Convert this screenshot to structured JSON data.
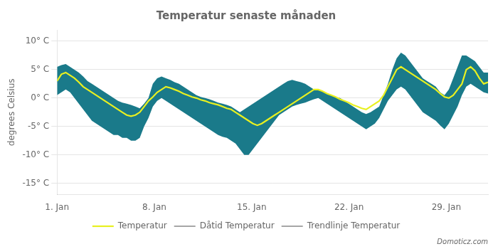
{
  "chart_data": {
    "type": "line",
    "title": "Temperatur senaste månaden",
    "y_label": "degrees Celsius",
    "annotation": "Domoticz.com",
    "x": [
      0,
      0.3131,
      0.6263,
      0.9394,
      1.2525,
      1.5657,
      1.8788,
      2.1919,
      2.5051,
      2.8182,
      3.1313,
      3.4444,
      3.7576,
      4.0707,
      4.3838,
      4.697,
      5.0101,
      5.3232,
      5.6364,
      5.9495,
      6.2626,
      6.5758,
      6.8889,
      7.202,
      7.5152,
      7.8283,
      8.1414,
      8.4545,
      8.7677,
      9.0808,
      9.3939,
      9.7071,
      10.0202,
      10.3333,
      10.6465,
      10.9596,
      11.2727,
      11.5859,
      11.899,
      12.2121,
      12.5253,
      12.8384,
      13.1515,
      13.4646,
      13.7778,
      14.0909,
      14.404,
      14.7172,
      15.0303,
      15.3434,
      15.6566,
      15.9697,
      16.2828,
      16.596,
      16.9091,
      17.2222,
      17.5354,
      17.8485,
      18.1616,
      18.4747,
      18.7879,
      19.101,
      19.4141,
      19.7273,
      20.0404,
      20.3535,
      20.6667,
      20.9798,
      21.2929,
      21.6061,
      21.9192,
      22.2323,
      22.5455,
      22.8586,
      23.1717,
      23.4848,
      23.798,
      24.1111,
      24.4242,
      24.7374,
      25.0505,
      25.3636,
      25.6768,
      25.9899,
      26.303,
      26.6162,
      26.9293,
      27.2424,
      27.5556,
      27.8687,
      28.1818,
      28.4949,
      28.8081,
      29.1212,
      29.4343,
      29.7475,
      30.0606,
      30.3737,
      30.6869,
      31
    ],
    "series": [
      {
        "name": "Temperatur",
        "color": "#e8f020",
        "line_style": "solid",
        "values": [
          3.0,
          4.2,
          4.5,
          4.0,
          3.5,
          2.8,
          2.0,
          1.5,
          1.0,
          0.5,
          0.0,
          -0.5,
          -1.0,
          -1.5,
          -2.0,
          -2.5,
          -3.0,
          -3.2,
          -3.0,
          -2.5,
          -1.5,
          -0.5,
          0.2,
          1.0,
          1.5,
          2.0,
          1.8,
          1.5,
          1.2,
          0.8,
          0.5,
          0.2,
          0.0,
          -0.3,
          -0.5,
          -0.8,
          -1.0,
          -1.2,
          -1.5,
          -1.8,
          -2.0,
          -2.5,
          -3.0,
          -3.5,
          -4.0,
          -4.5,
          -4.8,
          -4.5,
          -4.0,
          -3.5,
          -3.0,
          -2.5,
          -2.0,
          -1.5,
          -1.0,
          -0.5,
          0.0,
          0.5,
          1.0,
          1.5,
          1.5,
          1.2,
          0.8,
          0.5,
          0.2,
          -0.2,
          -0.5,
          -0.8,
          -1.2,
          -1.5,
          -1.8,
          -2.0,
          -1.5,
          -1.0,
          -0.5,
          0.5,
          2.0,
          3.5,
          5.0,
          5.5,
          5.0,
          4.5,
          4.0,
          3.5,
          3.0,
          2.5,
          2.0,
          1.5,
          0.8,
          0.2,
          0.0,
          0.5,
          1.5,
          2.5,
          5.0,
          5.5,
          4.8,
          3.5,
          2.5,
          2.8
        ]
      },
      {
        "name": "Dåtid Temperatur",
        "color": "#888888",
        "line_style": "dashed",
        "values": [
          null,
          null,
          null,
          null,
          null,
          null,
          null,
          null,
          null,
          null,
          null,
          null,
          null,
          null,
          null,
          null,
          null,
          null,
          null,
          null,
          null,
          null,
          null,
          null,
          null,
          null,
          null,
          null,
          null,
          null,
          null,
          null,
          null,
          null,
          null,
          null,
          null,
          null,
          null,
          null,
          null,
          null,
          null,
          null,
          null,
          null,
          null,
          null,
          null,
          null,
          null,
          null,
          null,
          null,
          null,
          null,
          null,
          null,
          null,
          null,
          null,
          null,
          null,
          null,
          null,
          null,
          null,
          null,
          null,
          null,
          null,
          null,
          null,
          null,
          null,
          null,
          null,
          null,
          null,
          null,
          null,
          null,
          null,
          null,
          null,
          null,
          null,
          null,
          null,
          null,
          null,
          null,
          null,
          null,
          null,
          null,
          null,
          null,
          null,
          null
        ]
      },
      {
        "name": "Trendlinje Temperatur",
        "color": "#888888",
        "line_style": "dashed",
        "values": [
          null,
          null,
          null,
          null,
          null,
          null,
          null,
          null,
          null,
          null,
          null,
          null,
          null,
          null,
          null,
          null,
          null,
          null,
          null,
          null,
          null,
          null,
          null,
          null,
          null,
          null,
          null,
          null,
          null,
          null,
          null,
          null,
          null,
          null,
          null,
          null,
          null,
          null,
          null,
          null,
          null,
          null,
          null,
          null,
          null,
          null,
          null,
          null,
          null,
          null,
          null,
          null,
          null,
          null,
          null,
          null,
          null,
          null,
          null,
          null,
          null,
          null,
          null,
          null,
          null,
          null,
          null,
          null,
          null,
          null,
          null,
          null,
          null,
          null,
          null,
          null,
          null,
          null,
          null,
          null,
          null,
          null,
          null,
          null,
          null,
          null,
          null,
          null,
          null,
          null,
          null,
          null,
          null,
          null,
          null,
          null,
          null,
          null,
          null,
          null
        ]
      }
    ],
    "band": {
      "color": "#1a7a8a",
      "upper": [
        5.5,
        5.8,
        6.0,
        5.5,
        5.0,
        4.5,
        3.8,
        3.0,
        2.5,
        2.0,
        1.5,
        1.0,
        0.5,
        0.0,
        -0.5,
        -0.8,
        -1.0,
        -1.2,
        -1.5,
        -1.8,
        -1.0,
        0.0,
        2.5,
        3.5,
        3.8,
        3.5,
        3.2,
        2.8,
        2.5,
        2.0,
        1.5,
        1.0,
        0.5,
        0.2,
        0.0,
        -0.2,
        -0.5,
        -0.8,
        -1.0,
        -1.2,
        -1.5,
        -2.0,
        -2.5,
        -2.0,
        -1.5,
        -1.0,
        -0.5,
        0.0,
        0.5,
        1.0,
        1.5,
        2.0,
        2.5,
        3.0,
        3.2,
        3.0,
        2.8,
        2.5,
        2.0,
        1.5,
        1.5,
        1.2,
        0.8,
        0.5,
        0.2,
        0.0,
        -0.5,
        -1.0,
        -1.5,
        -2.0,
        -2.5,
        -2.8,
        -2.5,
        -2.0,
        -1.5,
        0.5,
        2.5,
        5.0,
        7.0,
        8.0,
        7.5,
        6.5,
        5.5,
        4.5,
        3.5,
        3.0,
        2.5,
        2.0,
        1.0,
        0.5,
        1.5,
        3.5,
        5.5,
        7.5,
        7.5,
        7.0,
        6.5,
        5.5,
        4.5,
        4.5
      ],
      "lower": [
        0.5,
        1.0,
        1.5,
        1.0,
        0.0,
        -1.0,
        -2.0,
        -3.0,
        -4.0,
        -4.5,
        -5.0,
        -5.5,
        -6.0,
        -6.5,
        -6.5,
        -7.0,
        -7.0,
        -7.5,
        -7.5,
        -7.0,
        -5.0,
        -3.5,
        -1.5,
        -0.5,
        0.0,
        -0.5,
        -1.0,
        -1.5,
        -2.0,
        -2.5,
        -3.0,
        -3.5,
        -4.0,
        -4.5,
        -5.0,
        -5.5,
        -6.0,
        -6.5,
        -6.8,
        -7.0,
        -7.5,
        -8.0,
        -9.0,
        -10.0,
        -10.0,
        -9.0,
        -8.0,
        -7.0,
        -6.0,
        -5.0,
        -4.0,
        -3.0,
        -2.5,
        -2.0,
        -1.5,
        -1.2,
        -1.0,
        -0.8,
        -0.5,
        -0.2,
        0.0,
        -0.5,
        -1.0,
        -1.5,
        -2.0,
        -2.5,
        -3.0,
        -3.5,
        -4.0,
        -4.5,
        -5.0,
        -5.5,
        -5.0,
        -4.5,
        -3.5,
        -2.0,
        -0.5,
        0.5,
        1.5,
        2.0,
        1.5,
        0.5,
        -0.5,
        -1.5,
        -2.5,
        -3.0,
        -3.5,
        -4.0,
        -4.8,
        -5.5,
        -4.5,
        -3.0,
        -1.5,
        0.5,
        2.0,
        2.5,
        2.0,
        1.5,
        1.0,
        0.8
      ]
    },
    "xlim": [
      0,
      31
    ],
    "xticks": [
      {
        "value": 0,
        "label": "1. Jan"
      },
      {
        "value": 7,
        "label": "8. Jan"
      },
      {
        "value": 14,
        "label": "15. Jan"
      },
      {
        "value": 21,
        "label": "22. Jan"
      },
      {
        "value": 28,
        "label": "29. Jan"
      }
    ],
    "ylim": [
      -17,
      12
    ],
    "yticks": [
      {
        "value": -15,
        "label": "-15° C"
      },
      {
        "value": -10,
        "label": "-10° C"
      },
      {
        "value": -5,
        "label": "-5° C"
      },
      {
        "value": 0,
        "label": "0° C"
      },
      {
        "value": 5,
        "label": "5° C"
      },
      {
        "value": 10,
        "label": "10° C"
      }
    ],
    "grid": "y",
    "legend": "bottom"
  }
}
